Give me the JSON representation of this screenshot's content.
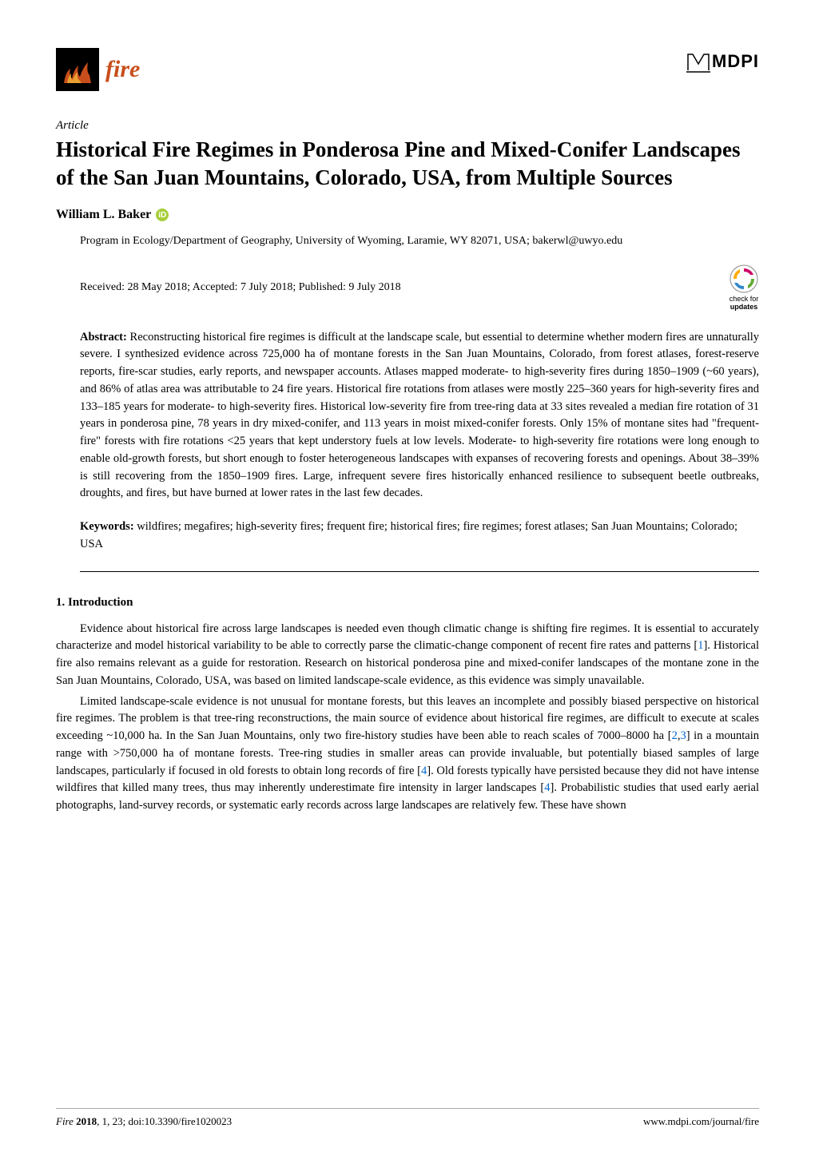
{
  "header": {
    "journal_logo_text": "fire",
    "publisher_logo_text": "MDPI",
    "colors": {
      "fire_orange": "#c84e1c",
      "black": "#000000",
      "orcid_green": "#a6ce39",
      "link_blue": "#0066cc"
    }
  },
  "article": {
    "type": "Article",
    "title": "Historical Fire Regimes in Ponderosa Pine and Mixed-Conifer Landscapes of the San Juan Mountains, Colorado, USA, from Multiple Sources",
    "author": "William L. Baker",
    "affiliation": "Program in Ecology/Department of Geography, University of Wyoming, Laramie, WY 82071, USA; bakerwl@uwyo.edu",
    "dates": "Received: 28 May 2018; Accepted: 7 July 2018; Published: 9 July 2018",
    "check_updates_text": "check for updates"
  },
  "abstract": {
    "label": "Abstract:",
    "text": " Reconstructing historical fire regimes is difficult at the landscape scale, but essential to determine whether modern fires are unnaturally severe. I synthesized evidence across 725,000 ha of montane forests in the San Juan Mountains, Colorado, from forest atlases, forest-reserve reports, fire-scar studies, early reports, and newspaper accounts. Atlases mapped moderate- to high-severity fires during 1850–1909 (~60 years), and 86% of atlas area was attributable to 24 fire years. Historical fire rotations from atlases were mostly 225–360 years for high-severity fires and 133–185 years for moderate- to high-severity fires. Historical low-severity fire from tree-ring data at 33 sites revealed a median fire rotation of 31 years in ponderosa pine, 78 years in dry mixed-conifer, and 113 years in moist mixed-conifer forests. Only 15% of montane sites had \"frequent-fire\" forests with fire rotations <25 years that kept understory fuels at low levels. Moderate- to high-severity fire rotations were long enough to enable old-growth forests, but short enough to foster heterogeneous landscapes with expanses of recovering forests and openings. About 38–39% is still recovering from the 1850–1909 fires. Large, infrequent severe fires historically enhanced resilience to subsequent beetle outbreaks, droughts, and fires, but have burned at lower rates in the last few decades."
  },
  "keywords": {
    "label": "Keywords:",
    "text": " wildfires; megafires; high-severity fires; frequent fire; historical fires; fire regimes; forest atlases; San Juan Mountains; Colorado; USA"
  },
  "section": {
    "heading": "1. Introduction",
    "paragraphs": [
      {
        "parts": [
          {
            "t": "Evidence about historical fire across large landscapes is needed even though climatic change is shifting fire regimes. It is essential to accurately characterize and model historical variability to be able to correctly parse the climatic-change component of recent fire rates and patterns ["
          },
          {
            "t": "1",
            "link": true
          },
          {
            "t": "]. Historical fire also remains relevant as a guide for restoration. Research on historical ponderosa pine and mixed-conifer landscapes of the montane zone in the San Juan Mountains, Colorado, USA, was based on limited landscape-scale evidence, as this evidence was simply unavailable."
          }
        ]
      },
      {
        "parts": [
          {
            "t": "Limited landscape-scale evidence is not unusual for montane forests, but this leaves an incomplete and possibly biased perspective on historical fire regimes. The problem is that tree-ring reconstructions, the main source of evidence about historical fire regimes, are difficult to execute at scales exceeding ~10,000 ha. In the San Juan Mountains, only two fire-history studies have been able to reach scales of 7000–8000 ha ["
          },
          {
            "t": "2",
            "link": true
          },
          {
            "t": ","
          },
          {
            "t": "3",
            "link": true
          },
          {
            "t": "] in a mountain range with >750,000 ha of montane forests. Tree-ring studies in smaller areas can provide invaluable, but potentially biased samples of large landscapes, particularly if focused in old forests to obtain long records of fire ["
          },
          {
            "t": "4",
            "link": true
          },
          {
            "t": "]. Old forests typically have persisted because they did not have intense wildfires that killed many trees, thus may inherently underestimate fire intensity in larger landscapes ["
          },
          {
            "t": "4",
            "link": true
          },
          {
            "t": "]. Probabilistic studies that used early aerial photographs, land-survey records, or systematic early records across large landscapes are relatively few. These have shown"
          }
        ]
      }
    ]
  },
  "footer": {
    "journal": "Fire",
    "year": "2018",
    "volume_issue_page": ", 1, 23; doi:10.3390/fire1020023",
    "url": "www.mdpi.com/journal/fire"
  }
}
